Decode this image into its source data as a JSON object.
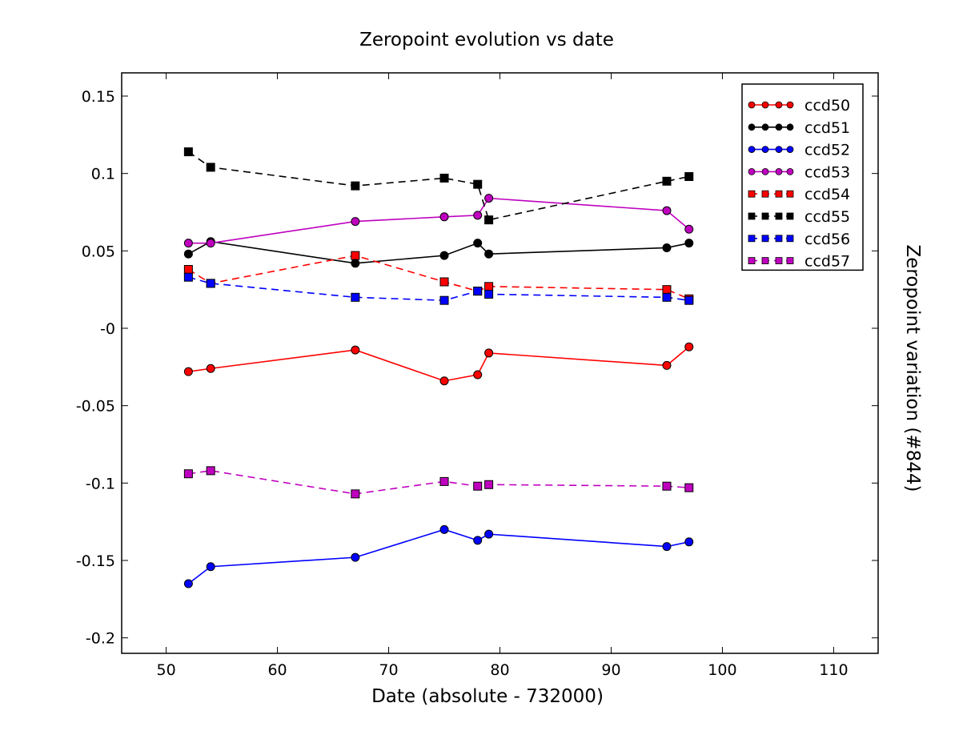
{
  "chart_data": {
    "type": "line",
    "title": "Zeropoint evolution vs date",
    "xlabel": "Date (absolute - 732000)",
    "ylabel": "Zeropoint variation (#844)",
    "xlim": [
      46,
      114
    ],
    "ylim": [
      -0.21,
      0.165
    ],
    "xticks": [
      50,
      60,
      70,
      80,
      90,
      100,
      110
    ],
    "xtick_labels": [
      "50",
      "60",
      "70",
      "80",
      "90",
      "100",
      "110"
    ],
    "yticks": [
      0.15,
      0.1,
      0.05,
      0,
      -0.05,
      -0.1,
      -0.15,
      -0.2
    ],
    "ytick_labels": [
      "0.15",
      "0.1",
      "0.05",
      "-0",
      "-0.05",
      "-0.1",
      "-0.15",
      "-0.2"
    ],
    "grid": false,
    "legend_position": "top-right",
    "x": [
      52,
      54,
      67,
      75,
      78,
      79,
      95,
      97
    ],
    "series": [
      {
        "name": "ccd50",
        "color": "#ff0000",
        "linestyle": "solid",
        "marker": "circle",
        "values": [
          -0.028,
          -0.026,
          -0.014,
          -0.034,
          -0.03,
          -0.016,
          -0.024,
          -0.012
        ]
      },
      {
        "name": "ccd51",
        "color": "#000000",
        "linestyle": "solid",
        "marker": "circle",
        "values": [
          0.048,
          0.056,
          0.042,
          0.047,
          0.055,
          0.048,
          0.052,
          0.055
        ]
      },
      {
        "name": "ccd52",
        "color": "#0000ff",
        "linestyle": "solid",
        "marker": "circle",
        "values": [
          -0.165,
          -0.154,
          -0.148,
          -0.13,
          -0.137,
          -0.133,
          -0.141,
          -0.138
        ]
      },
      {
        "name": "ccd53",
        "color": "#bf00bf",
        "linestyle": "solid",
        "marker": "circle",
        "values": [
          0.055,
          0.055,
          0.069,
          0.072,
          0.073,
          0.084,
          0.076,
          0.064
        ]
      },
      {
        "name": "ccd54",
        "color": "#ff0000",
        "linestyle": "dashed",
        "marker": "square",
        "values": [
          0.038,
          0.029,
          0.047,
          0.03,
          0.024,
          0.027,
          0.025,
          0.019
        ]
      },
      {
        "name": "ccd55",
        "color": "#000000",
        "linestyle": "dashed",
        "marker": "square",
        "values": [
          0.114,
          0.104,
          0.092,
          0.097,
          0.093,
          0.07,
          0.095,
          0.098
        ]
      },
      {
        "name": "ccd56",
        "color": "#0000ff",
        "linestyle": "dashed",
        "marker": "square",
        "values": [
          0.033,
          0.029,
          0.02,
          0.018,
          0.024,
          0.022,
          0.02,
          0.018
        ]
      },
      {
        "name": "ccd57",
        "color": "#bf00bf",
        "linestyle": "dashed",
        "marker": "square",
        "values": [
          -0.094,
          -0.092,
          -0.107,
          -0.099,
          -0.102,
          -0.101,
          -0.102,
          -0.103
        ]
      }
    ]
  }
}
